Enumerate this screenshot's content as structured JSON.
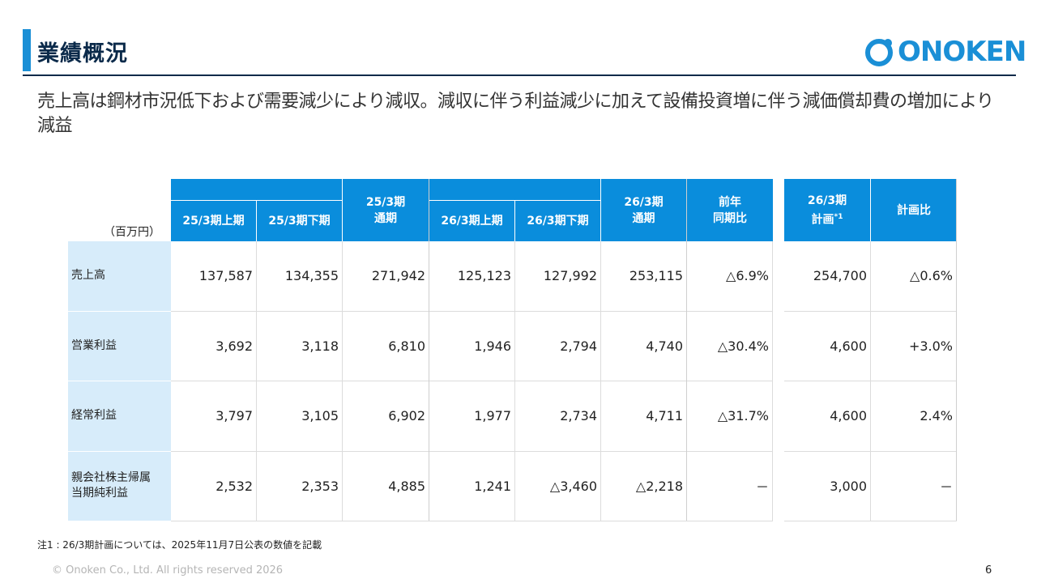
{
  "header": {
    "title": "業績概況",
    "logo_text": "ONOKEN",
    "logo_icon": "onoken-logo-icon"
  },
  "subtitle": "売上高は鋼材市況低下および需要減少により減収。減収に伴う利益減少に加えて設備投資増に伴う減価償却費の増加により減益",
  "table": {
    "unit": "（百万円）",
    "columns": {
      "c25h1": "25/3期上期",
      "c25h2": "25/3期下期",
      "c25fy_1": "25/3期",
      "c25fy_2": "通期",
      "c26h1": "26/3期上期",
      "c26h2": "26/3期下期",
      "c26fy_1": "26/3期",
      "c26fy_2": "通期",
      "yoy_1": "前年",
      "yoy_2": "同期比",
      "plan_1": "26/3期",
      "plan_2": "計画",
      "plan_note": "*1",
      "vs_plan": "計画比"
    },
    "rows": [
      {
        "label_1": "売上高",
        "label_2": "",
        "values": [
          "137,587",
          "134,355",
          "271,942",
          "125,123",
          "127,992",
          "253,115",
          "△6.9%",
          "254,700",
          "△0.6%"
        ]
      },
      {
        "label_1": "営業利益",
        "label_2": "",
        "values": [
          "3,692",
          "3,118",
          "6,810",
          "1,946",
          "2,794",
          "4,740",
          "△30.4%",
          "4,600",
          "+3.0%"
        ]
      },
      {
        "label_1": "経常利益",
        "label_2": "",
        "values": [
          "3,797",
          "3,105",
          "6,902",
          "1,977",
          "2,734",
          "4,711",
          "△31.7%",
          "4,600",
          "2.4%"
        ]
      },
      {
        "label_1": "親会社株主帰属",
        "label_2": "当期純利益",
        "values": [
          "2,532",
          "2,353",
          "4,885",
          "1,241",
          "△3,460",
          "△2,218",
          "－",
          "3,000",
          "－"
        ]
      }
    ]
  },
  "colors": {
    "header_blue": "#0a8ddc",
    "label_bg": "#d7ecfa",
    "title_navy": "#0b2a4a",
    "accent": "#1a8fd6"
  },
  "footer": {
    "note": "注1 : 26/3期計画については、2025年11月7日公表の数値を記載",
    "copyright": "© Onoken Co., Ltd. All rights reserved 2026",
    "page": "6"
  }
}
